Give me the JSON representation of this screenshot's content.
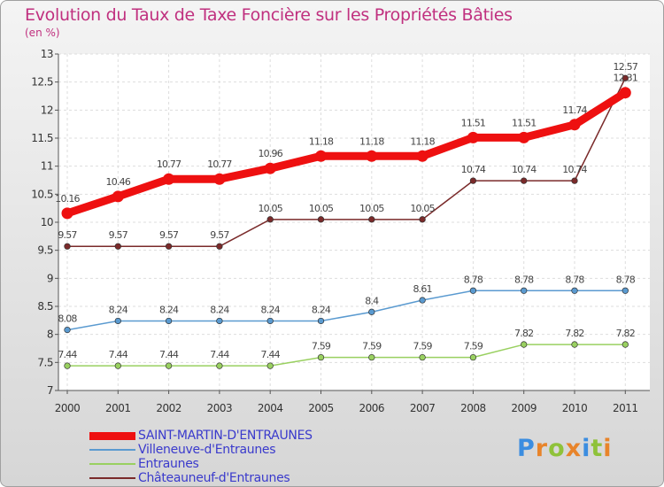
{
  "title": "Evolution du Taux de Taxe Foncière sur les Propriétés Bâties",
  "unit": "(en %)",
  "logo": {
    "text": "Proxiti",
    "letters": [
      "P",
      "r",
      "o",
      "x",
      "i",
      "t",
      "i"
    ],
    "colors": [
      "#3b8de0",
      "#e8842a",
      "#8fc23a",
      "#e8842a",
      "#3b8de0",
      "#8fc23a",
      "#e8842a"
    ]
  },
  "chart_data": {
    "type": "line",
    "x": [
      "2000",
      "2001",
      "2002",
      "2003",
      "2004",
      "2005",
      "2006",
      "2007",
      "2008",
      "2009",
      "2010",
      "2011"
    ],
    "ylim": [
      7,
      13
    ],
    "yticks": [
      "7",
      "7.5",
      "8",
      "8.5",
      "9",
      "9.5",
      "10",
      "10.5",
      "11",
      "11.5",
      "12",
      "12.5",
      "13"
    ],
    "grid": true,
    "legend_position": "bottom-left",
    "series": [
      {
        "name": "SAINT-MARTIN-D'ENTRAUNES",
        "color": "#ee1010",
        "values": [
          10.16,
          10.46,
          10.77,
          10.77,
          10.96,
          11.18,
          11.18,
          11.18,
          11.51,
          11.51,
          11.74,
          12.31
        ],
        "labels": [
          "10.16",
          "10.46",
          "10.77",
          "10.77",
          "10.96",
          "11.18",
          "11.18",
          "11.18",
          "11.51",
          "11.51",
          "11.74",
          "12.31"
        ]
      },
      {
        "name": "Villeneuve-d'Entraunes",
        "color": "#5a9ad0",
        "values": [
          8.08,
          8.24,
          8.24,
          8.24,
          8.24,
          8.24,
          8.4,
          8.61,
          8.78,
          8.78,
          8.78,
          8.78
        ],
        "labels": [
          "8.08",
          "8.24",
          "8.24",
          "8.24",
          "8.24",
          "8.24",
          "8.4",
          "8.61",
          "8.78",
          "8.78",
          "8.78",
          "8.78"
        ]
      },
      {
        "name": "Entraunes",
        "color": "#99d060",
        "values": [
          7.44,
          7.44,
          7.44,
          7.44,
          7.44,
          7.59,
          7.59,
          7.59,
          7.59,
          7.82,
          7.82,
          7.82
        ],
        "labels": [
          "7.44",
          "7.44",
          "7.44",
          "7.44",
          "7.44",
          "7.59",
          "7.59",
          "7.59",
          "7.59",
          "7.82",
          "7.82",
          "7.82"
        ]
      },
      {
        "name": "Châteauneuf-d'Entraunes",
        "color": "#7a2a2a",
        "values": [
          9.57,
          9.57,
          9.57,
          9.57,
          10.05,
          10.05,
          10.05,
          10.05,
          10.74,
          10.74,
          10.74,
          12.57
        ],
        "labels": [
          "9.57",
          "9.57",
          "9.57",
          "9.57",
          "10.05",
          "10.05",
          "10.05",
          "10.05",
          "10.74",
          "10.74",
          "10.74",
          "12.57"
        ]
      }
    ]
  }
}
